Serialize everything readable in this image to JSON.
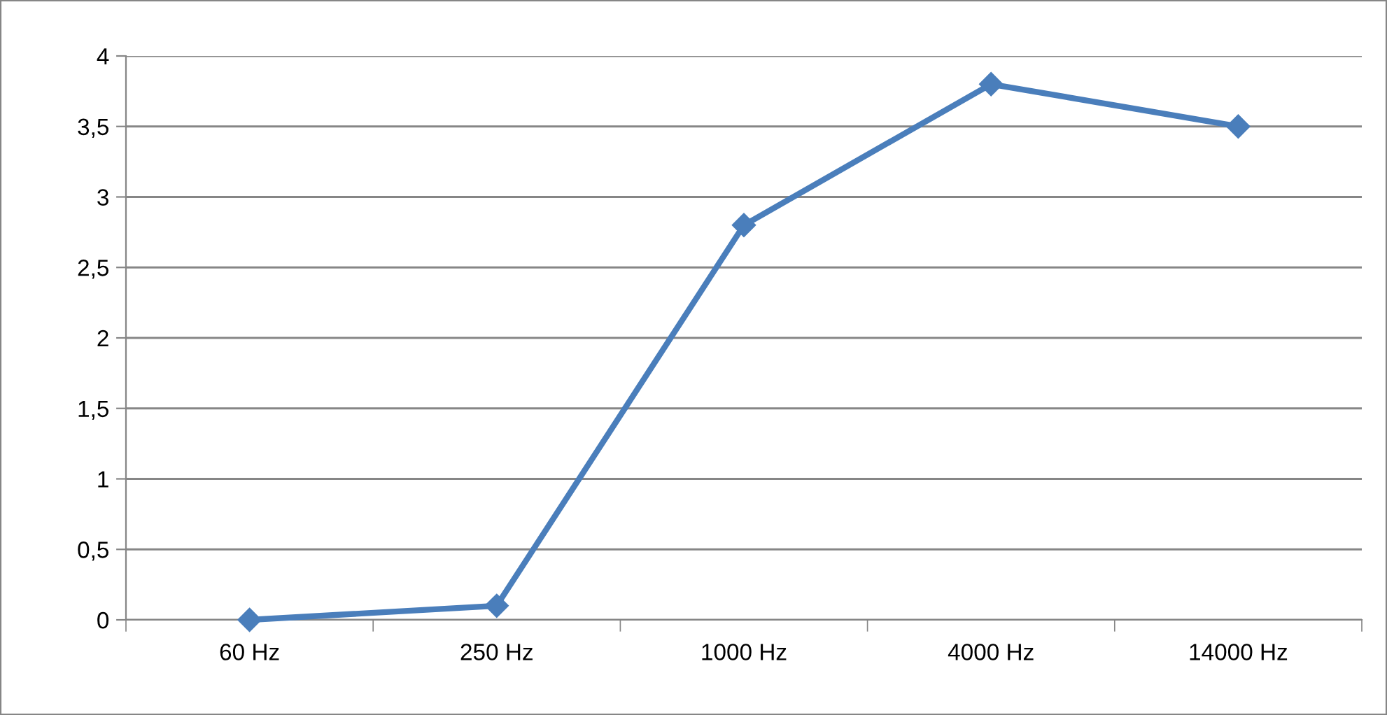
{
  "chart_data": {
    "type": "line",
    "categories": [
      "60 Hz",
      "250 Hz",
      "1000 Hz",
      "4000 Hz",
      "14000 Hz"
    ],
    "series": [
      {
        "color": "#4a7ebb",
        "values": [
          0,
          0.1,
          2.8,
          3.8,
          3.5
        ]
      }
    ],
    "ylim": [
      0,
      4
    ],
    "yticks": [
      0,
      {
        "value": 0.5,
        "label": "0,5"
      },
      1,
      {
        "value": 1.5,
        "label": "1,5"
      },
      2,
      {
        "value": 2.5,
        "label": "2,5"
      },
      3,
      {
        "value": 3.5,
        "label": "3,5"
      },
      4
    ],
    "grid": "y",
    "legend": false,
    "marker": "diamond",
    "line_style": "solid"
  }
}
